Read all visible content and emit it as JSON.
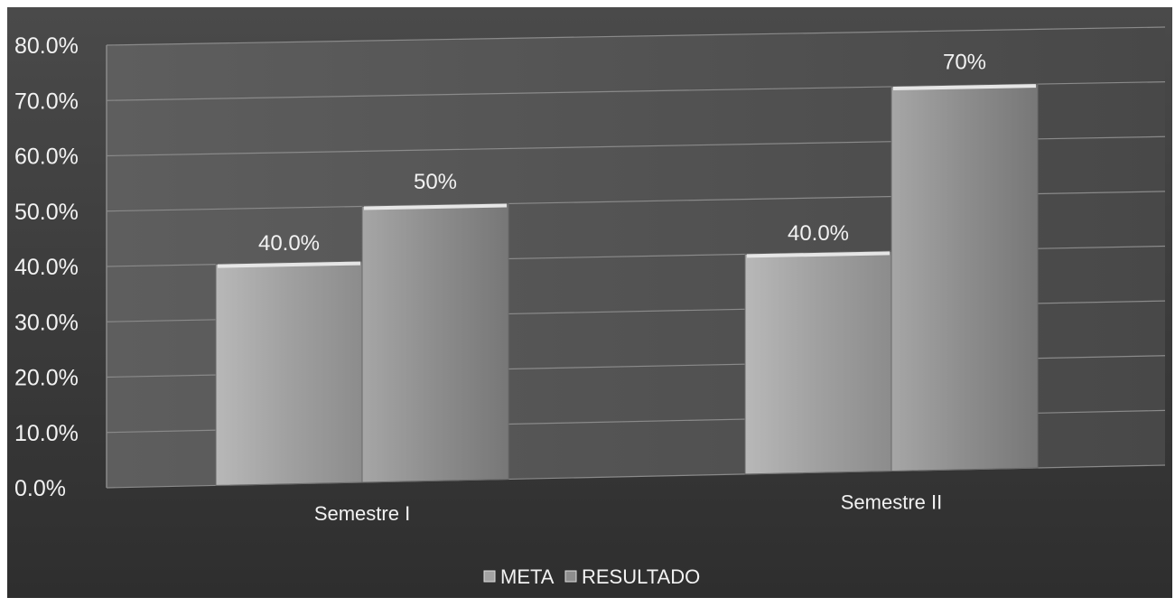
{
  "chart_data": {
    "type": "bar",
    "categories": [
      "Semestre I",
      "Semestre II"
    ],
    "series": [
      {
        "name": "META",
        "values": [
          40.0,
          40.0
        ],
        "labels": [
          "40.0%",
          "40.0%"
        ]
      },
      {
        "name": "RESULTADO",
        "values": [
          50,
          70
        ],
        "labels": [
          "50%",
          "70%"
        ]
      }
    ],
    "y_ticks": [
      "0.0%",
      "10.0%",
      "20.0%",
      "30.0%",
      "40.0%",
      "50.0%",
      "60.0%",
      "70.0%",
      "80.0%"
    ],
    "ylim": [
      0,
      80
    ],
    "grid": true,
    "legend": "bottom"
  },
  "colors": {
    "background": "#3a3a3a",
    "plot_area": "#505050",
    "gridline": "#8a8a8a",
    "meta_bar": "#a3a3a3",
    "resultado_bar": "#8e8e8e",
    "text": "#f2f2f2"
  }
}
